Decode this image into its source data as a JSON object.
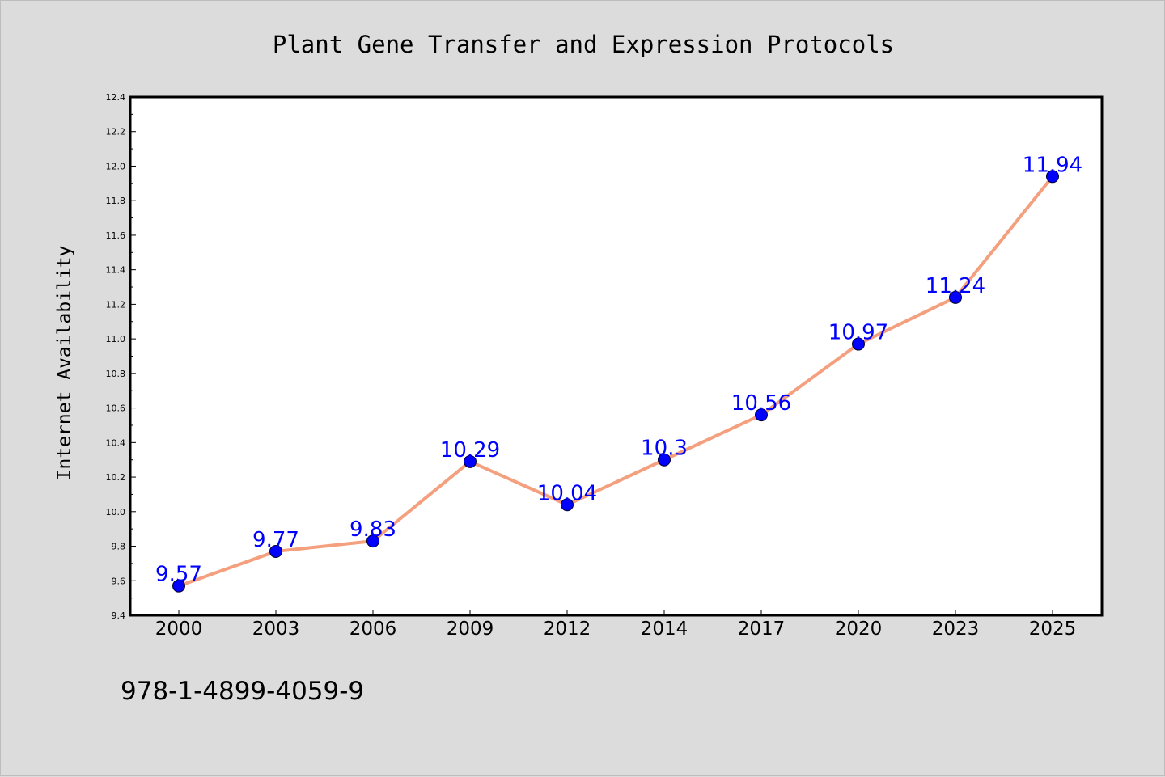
{
  "chart_data": {
    "type": "line",
    "title": "Plant Gene Transfer and Expression Protocols",
    "xlabel": "",
    "ylabel": "Internet Availability",
    "categories": [
      "2000",
      "2003",
      "2006",
      "2009",
      "2012",
      "2014",
      "2017",
      "2020",
      "2023",
      "2025"
    ],
    "values": [
      9.57,
      9.77,
      9.83,
      10.29,
      10.04,
      10.3,
      10.56,
      10.97,
      11.24,
      11.94
    ],
    "value_labels": [
      "9.57",
      "9.77",
      "9.83",
      "10.29",
      "10.04",
      "10.3",
      "10.56",
      "10.97",
      "11.24",
      "11.94"
    ],
    "ylim": [
      9.4,
      12.4
    ],
    "yticks": [
      "9.4",
      "9.6",
      "9.8",
      "10.0",
      "10.2",
      "10.4",
      "10.6",
      "10.8",
      "11.0",
      "11.2",
      "11.4",
      "11.6",
      "11.8",
      "12.0",
      "12.2",
      "12.4"
    ],
    "grid": false,
    "legend": "none",
    "colors": {
      "line": "#f4a07e",
      "marker": "#0000ff",
      "data_label": "#0000ff",
      "plot_bg": "#ffffff",
      "page_bg": "#dcdcdc"
    }
  },
  "footnote": "978-1-4899-4059-9"
}
